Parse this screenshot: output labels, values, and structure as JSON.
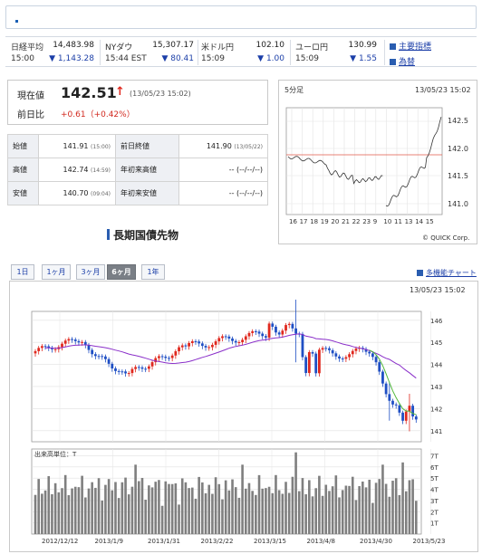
{
  "ticker": [
    {
      "name": "日経平均",
      "value": "14,483.98",
      "time": "15:00",
      "change": "▼ 1,143.28"
    },
    {
      "name": "NYダウ",
      "value": "15,307.17",
      "time": "15:44 EST",
      "change": "▼ 80.41"
    },
    {
      "name": "米ドル円",
      "value": "102.10",
      "time": "15:09",
      "change": "▼ 1.00"
    },
    {
      "name": "ユーロ円",
      "value": "130.99",
      "time": "15:09",
      "change": "▼ 1.55"
    }
  ],
  "links": {
    "indices": "主要指標",
    "fx": "為替"
  },
  "price": {
    "current_label": "現在値",
    "current_value": "142.51",
    "current_arrow": "↑",
    "current_time": "(13/05/23 15:02)",
    "prev_label": "前日比",
    "change": "+0.61（+0.42%）"
  },
  "stats": [
    {
      "label": "始値",
      "value": "141.91",
      "time": "(15:00)",
      "label2": "前日終値",
      "value2": "141.90",
      "time2": "(13/05/22)"
    },
    {
      "label": "高値",
      "value": "142.74",
      "time": "(14:59)",
      "label2": "年初来高値",
      "value2": "-- (--/--/--)",
      "time2": ""
    },
    {
      "label": "安値",
      "value": "140.70",
      "time": "(09:04)",
      "label2": "年初来安値",
      "value2": "-- (--/--/--)",
      "time2": ""
    }
  ],
  "intraday": {
    "interval_label": "5分足",
    "timestamp": "13/05/23 15:02",
    "copyright": "© QUICK Corp.",
    "y_ticks": [
      "142.5",
      "142.0",
      "141.5",
      "141.0"
    ],
    "x_ticks": [
      "16",
      "17",
      "18",
      "19",
      "20",
      "21",
      "22",
      "23",
      "9",
      "10",
      "11",
      "13",
      "14",
      "15"
    ],
    "colors": {
      "line": "#333333",
      "ref_line": "#e05a4a"
    }
  },
  "section_title": "長期国債先物",
  "tabs": [
    "1日",
    "1ヶ月",
    "3ヶ月",
    "6ヶ月",
    "1年"
  ],
  "active_tab": "6ヶ月",
  "multi_chart_link": "多機能チャート",
  "main_chart": {
    "timestamp": "13/05/23 15:02",
    "price_ticks": [
      "146",
      "145",
      "144",
      "143",
      "142",
      "141"
    ],
    "volume_label": "出来高単位：T",
    "volume_ticks": [
      "7T",
      "6T",
      "5T",
      "4T",
      "3T",
      "2T",
      "1T"
    ],
    "date_ticks": [
      "2012/12/12",
      "2013/1/9",
      "2013/1/31",
      "2013/2/22",
      "2013/3/15",
      "2013/4/8",
      "2013/4/30",
      "2013/5/23"
    ],
    "colors": {
      "up": "#e0281e",
      "down": "#1f4fc4",
      "ma_short": "#52b83a",
      "ma_long": "#8a2fc9",
      "volume": "#7f7f7f"
    }
  }
}
